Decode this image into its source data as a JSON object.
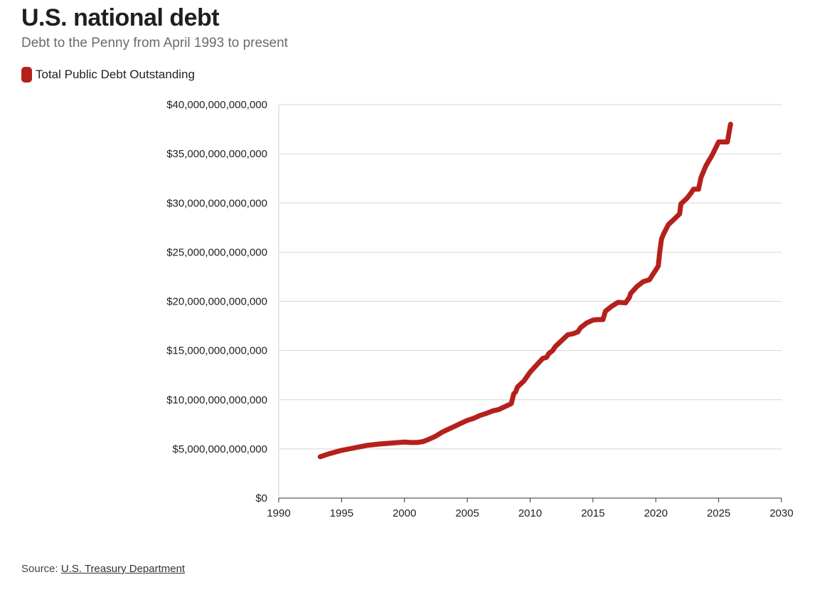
{
  "header": {
    "title": "U.S. national debt",
    "subtitle": "Debt to the Penny from April 1993 to present"
  },
  "legend": {
    "label": "Total Public Debt Outstanding",
    "color": "#b5201c"
  },
  "footer": {
    "source_prefix": "Source: ",
    "source_link": "U.S. Treasury Department"
  },
  "chart_data": {
    "type": "line",
    "title": "U.S. national debt",
    "subtitle": "Debt to the Penny from April 1993 to present",
    "xlabel": "",
    "ylabel": "",
    "xlim": [
      1990,
      2030
    ],
    "ylim": [
      0,
      40000000000000
    ],
    "x_ticks": [
      1990,
      1995,
      2000,
      2005,
      2010,
      2015,
      2020,
      2025,
      2030
    ],
    "y_ticks": [
      0,
      5000000000000,
      10000000000000,
      15000000000000,
      20000000000000,
      25000000000000,
      30000000000000,
      35000000000000,
      40000000000000
    ],
    "y_tick_labels": [
      "$0",
      "$5,000,000,000,000",
      "$10,000,000,000,000",
      "$15,000,000,000,000",
      "$20,000,000,000,000",
      "$25,000,000,000,000",
      "$30,000,000,000,000",
      "$35,000,000,000,000",
      "$40,000,000,000,000"
    ],
    "grid": true,
    "legend_position": "top-left",
    "series": [
      {
        "name": "Total Public Debt Outstanding",
        "color": "#b5201c",
        "x": [
          1993.3,
          1994,
          1995,
          1996,
          1997,
          1998,
          1999,
          2000,
          2000.5,
          2001,
          2001.5,
          2002,
          2002.5,
          2003,
          2003.5,
          2004,
          2004.5,
          2005,
          2005.5,
          2006,
          2006.5,
          2007,
          2007.5,
          2008,
          2008.5,
          2008.7,
          2008.85,
          2009,
          2009.5,
          2010,
          2010.5,
          2011,
          2011.3,
          2011.5,
          2011.8,
          2012,
          2012.5,
          2013,
          2013.4,
          2013.8,
          2014,
          2014.5,
          2015,
          2015.4,
          2015.8,
          2016,
          2016.5,
          2017,
          2017.6,
          2017.9,
          2018,
          2018.5,
          2019,
          2019.5,
          2019.8,
          2020,
          2020.2,
          2020.3,
          2020.45,
          2020.6,
          2021,
          2021.5,
          2021.9,
          2022,
          2022.5,
          2022.8,
          2023,
          2023.4,
          2023.6,
          2024,
          2024.5,
          2025,
          2025.3,
          2025.7,
          2025.85,
          2025.95
        ],
        "y": [
          4200000000000.0,
          4500000000000.0,
          4850000000000.0,
          5100000000000.0,
          5350000000000.0,
          5500000000000.0,
          5600000000000.0,
          5700000000000.0,
          5650000000000.0,
          5650000000000.0,
          5750000000000.0,
          6000000000000.0,
          6300000000000.0,
          6700000000000.0,
          7000000000000.0,
          7300000000000.0,
          7600000000000.0,
          7900000000000.0,
          8100000000000.0,
          8400000000000.0,
          8600000000000.0,
          8850000000000.0,
          9000000000000.0,
          9300000000000.0,
          9600000000000.0,
          10600000000000.0,
          10800000000000.0,
          11300000000000.0,
          11900000000000.0,
          12800000000000.0,
          13500000000000.0,
          14200000000000.0,
          14300000000000.0,
          14700000000000.0,
          15000000000000.0,
          15400000000000.0,
          16000000000000.0,
          16600000000000.0,
          16700000000000.0,
          16900000000000.0,
          17300000000000.0,
          17800000000000.0,
          18100000000000.0,
          18150000000000.0,
          18150000000000.0,
          19000000000000.0,
          19500000000000.0,
          19900000000000.0,
          19850000000000.0,
          20400000000000.0,
          20800000000000.0,
          21500000000000.0,
          22000000000000.0,
          22200000000000.0,
          22800000000000.0,
          23200000000000.0,
          23600000000000.0,
          24900000000000.0,
          26300000000000.0,
          26800000000000.0,
          27800000000000.0,
          28400000000000.0,
          28900000000000.0,
          29900000000000.0,
          30500000000000.0,
          31000000000000.0,
          31400000000000.0,
          31400000000000.0,
          32600000000000.0,
          33800000000000.0,
          34900000000000.0,
          36200000000000.0,
          36200000000000.0,
          36200000000000.0,
          37300000000000.0,
          38000000000000.0
        ]
      }
    ]
  }
}
